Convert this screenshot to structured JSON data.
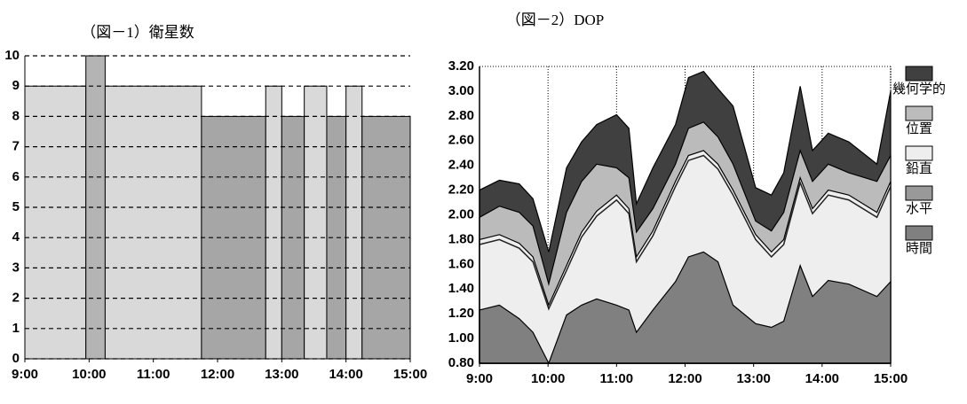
{
  "chart_data": [
    {
      "type": "histogram",
      "title": "（図－1）衛星数",
      "bins": [
        9,
        9.95,
        10.25,
        11.75,
        12.75,
        13,
        13.35,
        13.7,
        14,
        14.25,
        15
      ],
      "values": [
        9,
        10,
        9,
        8,
        9,
        8,
        9,
        8,
        9,
        8
      ],
      "colors": [
        "#d9d9d9",
        "#b4b4b4",
        "#d9d9d9",
        "#a6a6a6",
        "#d9d9d9",
        "#a6a6a6",
        "#d9d9d9",
        "#a6a6a6",
        "#d9d9d9",
        "#a6a6a6"
      ],
      "xlim": [
        9,
        15
      ],
      "xticks": [
        {
          "value": 9,
          "label": "9:00"
        },
        {
          "value": 10,
          "label": "10:00"
        },
        {
          "value": 11,
          "label": "11:00"
        },
        {
          "value": 12,
          "label": "12:00"
        },
        {
          "value": 13,
          "label": "13:00"
        },
        {
          "value": 14,
          "label": "14:00"
        },
        {
          "value": 15,
          "label": "15:00"
        }
      ],
      "ylim": [
        0,
        10
      ],
      "yticks": [
        0,
        1,
        2,
        3,
        4,
        5,
        6,
        7,
        8,
        9,
        10
      ],
      "grid": true
    },
    {
      "type": "area",
      "title": "（図－2）DOP",
      "x": [
        9.0,
        9.29,
        9.58,
        9.78,
        10.01,
        10.27,
        10.49,
        10.71,
        11.0,
        11.18,
        11.29,
        11.53,
        11.86,
        12.05,
        12.27,
        12.48,
        12.7,
        13.03,
        13.26,
        13.44,
        13.68,
        13.86,
        14.09,
        14.39,
        14.8,
        15.0
      ],
      "series": [
        {
          "name": "幾何学的",
          "color": "#404040",
          "fill": true,
          "values": [
            2.2,
            2.28,
            2.25,
            2.13,
            1.7,
            2.38,
            2.59,
            2.73,
            2.81,
            2.7,
            2.09,
            2.38,
            2.73,
            3.11,
            3.16,
            3.02,
            2.88,
            2.22,
            2.16,
            2.34,
            3.04,
            2.52,
            2.66,
            2.59,
            2.41,
            3.0
          ]
        },
        {
          "name": "位置",
          "color": "#bbbbbb",
          "fill": true,
          "values": [
            1.98,
            2.07,
            2.02,
            1.91,
            1.44,
            2.02,
            2.27,
            2.41,
            2.38,
            2.3,
            1.86,
            2.05,
            2.41,
            2.7,
            2.75,
            2.63,
            2.41,
            1.95,
            1.87,
            2.02,
            2.52,
            2.27,
            2.41,
            2.34,
            2.27,
            2.48
          ]
        },
        {
          "name": "鉛直",
          "color": "#eeeeee",
          "fill": true,
          "values": [
            1.8,
            1.84,
            1.77,
            1.66,
            1.27,
            1.59,
            1.86,
            2.03,
            2.16,
            2.05,
            1.66,
            1.87,
            2.27,
            2.48,
            2.52,
            2.41,
            2.2,
            1.84,
            1.7,
            1.8,
            2.3,
            2.05,
            2.2,
            2.16,
            2.02,
            2.27
          ]
        },
        {
          "name": "水平",
          "color": "#999999",
          "fill": false,
          "values": [
            1.76,
            1.8,
            1.73,
            1.62,
            1.24,
            1.55,
            1.82,
            1.99,
            2.12,
            2.01,
            1.62,
            1.83,
            2.23,
            2.44,
            2.48,
            2.37,
            2.16,
            1.8,
            1.66,
            1.76,
            2.26,
            2.01,
            2.16,
            2.12,
            1.98,
            2.23
          ]
        },
        {
          "name": "時間",
          "color": "#808080",
          "fill": true,
          "values": [
            1.23,
            1.27,
            1.16,
            1.05,
            0.8,
            1.19,
            1.27,
            1.32,
            1.27,
            1.23,
            1.05,
            1.23,
            1.46,
            1.66,
            1.7,
            1.62,
            1.27,
            1.12,
            1.09,
            1.14,
            1.59,
            1.34,
            1.47,
            1.44,
            1.34,
            1.46
          ]
        }
      ],
      "xlim": [
        9,
        15
      ],
      "xticks": [
        {
          "value": 9,
          "label": "9:00"
        },
        {
          "value": 10,
          "label": "10:00"
        },
        {
          "value": 11,
          "label": "11:00"
        },
        {
          "value": 12,
          "label": "12:00"
        },
        {
          "value": 13,
          "label": "13:00"
        },
        {
          "value": 14,
          "label": "14:00"
        },
        {
          "value": 15,
          "label": "15:00"
        }
      ],
      "ylim": [
        0.8,
        3.2
      ],
      "yticks": [
        {
          "value": 0.8,
          "label": "0.80"
        },
        {
          "value": 1.0,
          "label": "1.00"
        },
        {
          "value": 1.2,
          "label": "1.20"
        },
        {
          "value": 1.4,
          "label": "1.40"
        },
        {
          "value": 1.6,
          "label": "1.60"
        },
        {
          "value": 1.8,
          "label": "1.80"
        },
        {
          "value": 2.0,
          "label": "2.00"
        },
        {
          "value": 2.2,
          "label": "2.20"
        },
        {
          "value": 2.4,
          "label": "2.40"
        },
        {
          "value": 2.6,
          "label": "2.60"
        },
        {
          "value": 2.8,
          "label": "2.80"
        },
        {
          "value": 3.0,
          "label": "3.00"
        },
        {
          "value": 3.2,
          "label": "3.20"
        }
      ],
      "grid": true
    }
  ]
}
